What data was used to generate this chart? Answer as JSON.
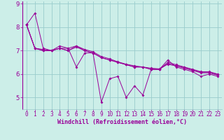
{
  "background_color": "#cceee8",
  "grid_color": "#99cccc",
  "line_color": "#990099",
  "marker_style": "D",
  "marker_size": 2.0,
  "xlim": [
    -0.5,
    23.5
  ],
  "ylim": [
    4.5,
    9.1
  ],
  "yticks": [
    5,
    6,
    7,
    8,
    9
  ],
  "xticks": [
    0,
    1,
    2,
    3,
    4,
    5,
    6,
    7,
    8,
    9,
    10,
    11,
    12,
    13,
    14,
    15,
    16,
    17,
    18,
    19,
    20,
    21,
    22,
    23
  ],
  "xlabel": "Windchill (Refroidissement éolien,°C)",
  "xlabel_fontsize": 6.0,
  "tick_fontsize": 5.5,
  "ytick_fontsize": 6.5,
  "series": [
    [
      8.1,
      8.6,
      7.1,
      7.0,
      7.1,
      7.1,
      6.3,
      6.9,
      6.9,
      4.8,
      5.8,
      5.9,
      5.0,
      5.5,
      5.1,
      6.2,
      6.2,
      6.6,
      6.3,
      6.2,
      6.1,
      5.9,
      6.0,
      5.9
    ],
    [
      8.1,
      7.1,
      7.05,
      7.0,
      7.1,
      7.0,
      7.2,
      7.0,
      6.9,
      6.7,
      6.6,
      6.5,
      6.4,
      6.3,
      6.3,
      6.2,
      6.2,
      6.5,
      6.4,
      6.3,
      6.2,
      6.1,
      6.1,
      6.0
    ],
    [
      8.1,
      7.1,
      7.0,
      7.0,
      7.1,
      7.0,
      7.15,
      7.0,
      6.9,
      6.7,
      6.6,
      6.5,
      6.4,
      6.3,
      6.3,
      6.2,
      6.2,
      6.45,
      6.35,
      6.25,
      6.15,
      6.05,
      6.05,
      5.95
    ],
    [
      8.1,
      7.1,
      7.0,
      7.0,
      7.2,
      7.1,
      7.2,
      7.05,
      6.95,
      6.75,
      6.65,
      6.52,
      6.42,
      6.35,
      6.3,
      6.25,
      6.22,
      6.42,
      6.35,
      6.28,
      6.18,
      6.08,
      6.08,
      5.98
    ]
  ]
}
